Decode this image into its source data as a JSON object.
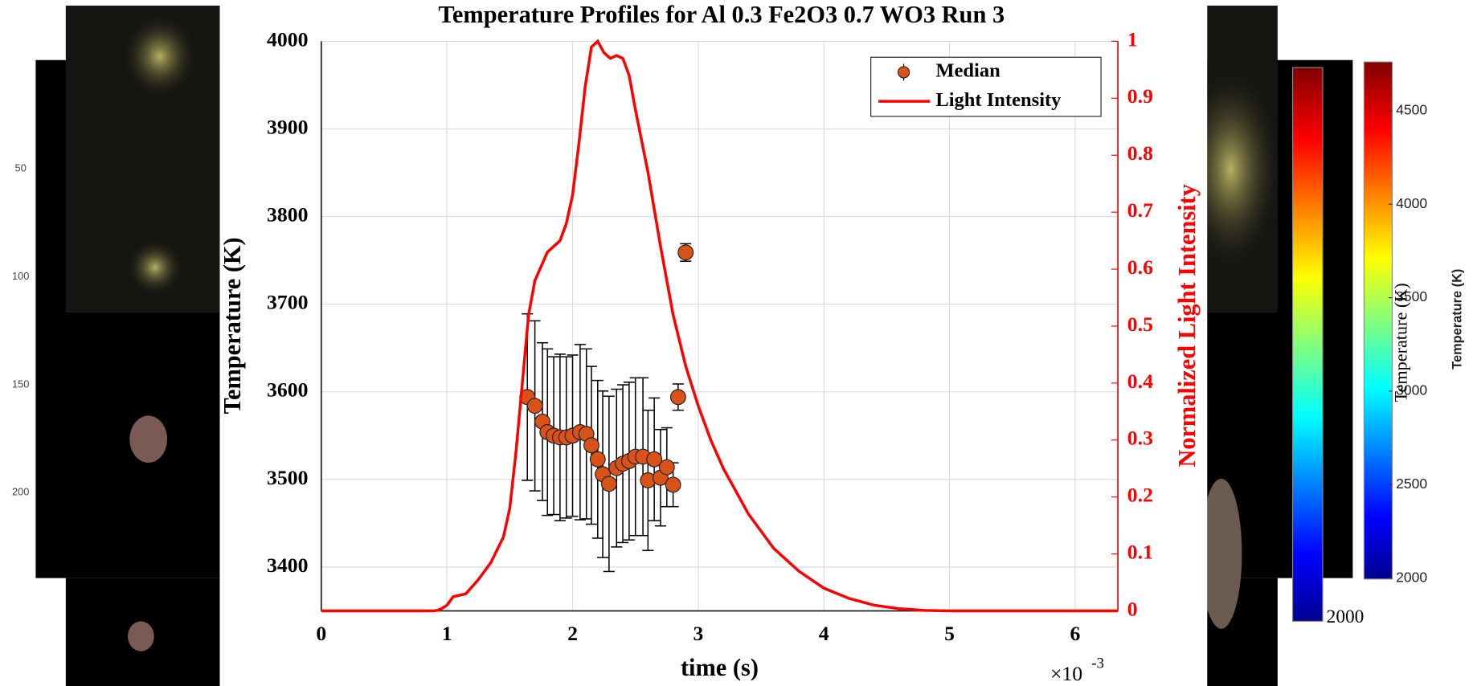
{
  "chart_data": {
    "type": "combo",
    "title": "Temperature Profiles for Al 0.3 Fe2O3 0.7 WO3 Run 3",
    "xlabel": "time (s)",
    "ylabel": "Temperature (K)",
    "y2label": "Normalized Light Intensity",
    "x_multiplier": "×10",
    "x_exponent": "-3",
    "xlim": [
      0,
      0.00634
    ],
    "ylim": [
      3350,
      4000
    ],
    "y2lim": [
      0,
      1
    ],
    "xticks": [
      0,
      {
        "value": 0.001,
        "label": "1"
      },
      {
        "value": 0.002,
        "label": "2"
      },
      {
        "value": 0.003,
        "label": "3"
      },
      {
        "value": 0.004,
        "label": "4"
      },
      {
        "value": 0.005,
        "label": "5"
      },
      {
        "value": 0.006,
        "label": "6"
      }
    ],
    "yticks": [
      3400,
      3500,
      3600,
      3700,
      3800,
      3900,
      4000
    ],
    "y2ticks": [
      0,
      0.1,
      0.2,
      0.3,
      0.4,
      0.5,
      0.6,
      0.7,
      0.8,
      0.9,
      1
    ],
    "grid": true,
    "legend": "upper right",
    "series": [
      {
        "name": "Median",
        "type": "errorbar",
        "color": "#d95319",
        "x": [
          0.00164,
          0.0017,
          0.00176,
          0.0018,
          0.00185,
          0.0019,
          0.00195,
          0.002,
          0.00206,
          0.00211,
          0.00215,
          0.0022,
          0.00224,
          0.00229,
          0.00235,
          0.0024,
          0.00245,
          0.0025,
          0.00256,
          0.0026,
          0.00265,
          0.0027,
          0.00275,
          0.0028,
          0.00284,
          0.0029
        ],
        "values": [
          3594,
          3584,
          3566,
          3554,
          3550,
          3548,
          3548,
          3550,
          3554,
          3552,
          3539,
          3523,
          3506,
          3495,
          3513,
          3518,
          3521,
          3526,
          3526,
          3499,
          3523,
          3502,
          3514,
          3494,
          3594,
          3759
        ],
        "errors": [
          95,
          97,
          90,
          95,
          90,
          95,
          92,
          92,
          100,
          97,
          90,
          90,
          95,
          100,
          90,
          90,
          90,
          90,
          90,
          80,
          70,
          55,
          45,
          25,
          15,
          10
        ]
      },
      {
        "name": "Light Intensity",
        "type": "line",
        "color": "#ff0000",
        "axis": "y2",
        "x": [
          0,
          0.0009,
          0.00095,
          0.001,
          0.00105,
          0.00115,
          0.00125,
          0.00135,
          0.00145,
          0.0015,
          0.00155,
          0.0016,
          0.00165,
          0.0017,
          0.0018,
          0.0019,
          0.00195,
          0.002,
          0.00205,
          0.0021,
          0.00215,
          0.0022,
          0.00225,
          0.0023,
          0.00235,
          0.0024,
          0.00245,
          0.0025,
          0.0026,
          0.0027,
          0.0028,
          0.0029,
          0.003,
          0.0031,
          0.0032,
          0.0034,
          0.0036,
          0.0038,
          0.004,
          0.0042,
          0.0044,
          0.0046,
          0.0048,
          0.005,
          0.00634
        ],
        "values": [
          0,
          0,
          0.003,
          0.01,
          0.025,
          0.03,
          0.055,
          0.085,
          0.13,
          0.18,
          0.28,
          0.4,
          0.52,
          0.58,
          0.63,
          0.65,
          0.68,
          0.73,
          0.82,
          0.92,
          0.99,
          1,
          0.98,
          0.97,
          0.975,
          0.97,
          0.94,
          0.88,
          0.77,
          0.64,
          0.52,
          0.43,
          0.36,
          0.3,
          0.25,
          0.17,
          0.11,
          0.07,
          0.04,
          0.022,
          0.01,
          0.004,
          0.001,
          0,
          0
        ]
      }
    ]
  },
  "background": {
    "left_axis_ticks": [
      50,
      100,
      150,
      200
    ],
    "colorbar": {
      "ticks": [
        2000,
        2500,
        3000,
        3500,
        4000,
        4500
      ],
      "label": "Temperature (K)"
    },
    "back_colorbar": {
      "tick": 2000,
      "label": "Temperature (K)"
    }
  }
}
